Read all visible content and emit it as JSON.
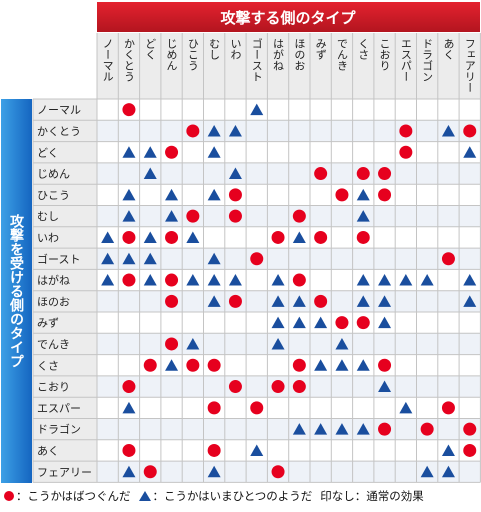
{
  "header": {
    "attack_title": "攻撃する側のタイプ",
    "defense_title": "攻撃を受ける側のタイプ"
  },
  "legend": {
    "super_effective": "：こうかはばつぐんだ",
    "not_very_effective": "：こうかはいまひとつのようだ",
    "normal_label": "印なし：通常の効果"
  },
  "colors": {
    "header_red": "#e4222f",
    "header_red_dark": "#b3151f",
    "side_blue": "#3ca0e6",
    "side_blue_dark": "#1565c0",
    "label_bg": "#ececec",
    "dot_red": "#e6001e",
    "triangle_blue": "#1a4e9e"
  },
  "chart_data": {
    "type": "table",
    "attack_types": [
      "ノーマル",
      "かくとう",
      "どく",
      "じめん",
      "ひこう",
      "むし",
      "いわ",
      "ゴースト",
      "はがね",
      "ほのお",
      "みず",
      "でんき",
      "くさ",
      "こおり",
      "エスパー",
      "ドラゴン",
      "あく",
      "フェアリー"
    ],
    "defense_types": [
      "ノーマル",
      "かくとう",
      "どく",
      "じめん",
      "ひこう",
      "むし",
      "いわ",
      "ゴースト",
      "はがね",
      "ほのお",
      "みず",
      "でんき",
      "くさ",
      "こおり",
      "エスパー",
      "ドラゴン",
      "あく",
      "フェアリー"
    ],
    "marks": [
      [
        "",
        "o",
        "",
        "",
        "",
        "",
        "",
        "x",
        "",
        "",
        "",
        "",
        "",
        "",
        "",
        "",
        "",
        ""
      ],
      [
        "",
        "",
        "",
        "",
        "o",
        "x",
        "x",
        "",
        "",
        "",
        "",
        "",
        "",
        "",
        "o",
        "",
        "x",
        "o"
      ],
      [
        "",
        "x",
        "x",
        "o",
        "",
        "x",
        "",
        "",
        "",
        "",
        "",
        "",
        "",
        "",
        "o",
        "",
        "",
        "x"
      ],
      [
        "",
        "",
        "x",
        "",
        "",
        "",
        "x",
        "",
        "",
        "",
        "o",
        "",
        "o",
        "o",
        "",
        "",
        "",
        ""
      ],
      [
        "",
        "x",
        "",
        "x",
        "",
        "x",
        "o",
        "",
        "",
        "",
        "",
        "o",
        "x",
        "o",
        "",
        "",
        "",
        ""
      ],
      [
        "",
        "x",
        "",
        "x",
        "o",
        "",
        "o",
        "",
        "",
        "o",
        "",
        "",
        "x",
        "",
        "",
        "",
        "",
        ""
      ],
      [
        "x",
        "o",
        "x",
        "o",
        "x",
        "",
        "",
        "",
        "o",
        "x",
        "o",
        "",
        "o",
        "",
        "",
        "",
        "",
        ""
      ],
      [
        "x",
        "x",
        "x",
        "",
        "",
        "x",
        "",
        "o",
        "",
        "",
        "",
        "",
        "",
        "",
        "",
        "",
        "o",
        ""
      ],
      [
        "x",
        "o",
        "x",
        "o",
        "x",
        "x",
        "x",
        "",
        "x",
        "o",
        "",
        "",
        "x",
        "x",
        "x",
        "x",
        "",
        "x"
      ],
      [
        "",
        "",
        "",
        "o",
        "",
        "x",
        "o",
        "",
        "x",
        "x",
        "o",
        "",
        "x",
        "x",
        "",
        "",
        "",
        "x"
      ],
      [
        "",
        "",
        "",
        "",
        "",
        "",
        "",
        "",
        "x",
        "x",
        "x",
        "o",
        "o",
        "x",
        "",
        "",
        "",
        ""
      ],
      [
        "",
        "",
        "",
        "o",
        "x",
        "",
        "",
        "",
        "x",
        "",
        "",
        "x",
        "",
        "",
        "",
        "",
        "",
        ""
      ],
      [
        "",
        "",
        "o",
        "x",
        "o",
        "o",
        "",
        "",
        "",
        "o",
        "x",
        "x",
        "x",
        "o",
        "",
        "",
        "",
        ""
      ],
      [
        "",
        "o",
        "",
        "",
        "",
        "",
        "o",
        "",
        "o",
        "o",
        "",
        "",
        "",
        "x",
        "",
        "",
        "",
        ""
      ],
      [
        "",
        "x",
        "",
        "",
        "",
        "o",
        "",
        "o",
        "",
        "",
        "",
        "",
        "",
        "",
        "x",
        "",
        "o",
        ""
      ],
      [
        "",
        "",
        "",
        "",
        "",
        "",
        "",
        "",
        "",
        "x",
        "x",
        "x",
        "x",
        "o",
        "",
        "o",
        "",
        "o"
      ],
      [
        "",
        "o",
        "",
        "",
        "",
        "o",
        "",
        "x",
        "",
        "",
        "",
        "",
        "",
        "",
        "",
        "",
        "x",
        "o"
      ],
      [
        "",
        "x",
        "o",
        "",
        "",
        "x",
        "",
        "",
        "o",
        "",
        "",
        "",
        "",
        "",
        "",
        "x",
        "x",
        ""
      ]
    ],
    "mark_legend": {
      "o": "super_effective",
      "x": "not_very_effective",
      "": "normal"
    }
  }
}
